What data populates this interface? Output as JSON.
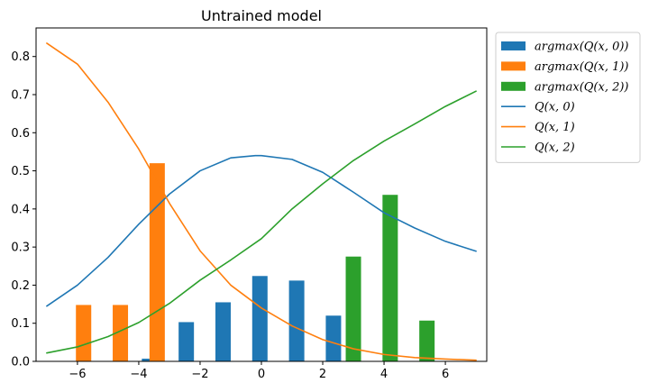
{
  "chart_data": {
    "type": "bar",
    "title": "Untrained model",
    "xlabel": "",
    "ylabel": "",
    "xlim": [
      -7.35,
      7.35
    ],
    "ylim": [
      0,
      0.875
    ],
    "xticks": [
      -6,
      -4,
      -2,
      0,
      2,
      4,
      6
    ],
    "xtick_labels": [
      "−6",
      "−4",
      "−2",
      "0",
      "2",
      "4",
      "6"
    ],
    "yticks": [
      0.0,
      0.1,
      0.2,
      0.3,
      0.4,
      0.5,
      0.6,
      0.7,
      0.8
    ],
    "ytick_labels": [
      "0.0",
      "0.1",
      "0.2",
      "0.3",
      "0.4",
      "0.5",
      "0.6",
      "0.7",
      "0.8"
    ],
    "grid": false,
    "legend_position": "outside-top-right",
    "bar_width": 0.5,
    "bar_series": [
      {
        "name": "argmax(Q(x, 0))",
        "color": "#1f77b4",
        "points": [
          {
            "x": -3.65,
            "y": 0.007
          },
          {
            "x": -2.45,
            "y": 0.103
          },
          {
            "x": -1.25,
            "y": 0.155
          },
          {
            "x": -0.05,
            "y": 0.224
          },
          {
            "x": 1.15,
            "y": 0.212
          },
          {
            "x": 2.35,
            "y": 0.12
          }
        ]
      },
      {
        "name": "argmax(Q(x, 1))",
        "color": "#ff7f0e",
        "points": [
          {
            "x": -5.8,
            "y": 0.148
          },
          {
            "x": -4.6,
            "y": 0.148
          },
          {
            "x": -3.4,
            "y": 0.52
          }
        ]
      },
      {
        "name": "argmax(Q(x, 2))",
        "color": "#2ca02c",
        "points": [
          {
            "x": 3.0,
            "y": 0.275
          },
          {
            "x": 4.2,
            "y": 0.437
          },
          {
            "x": 5.4,
            "y": 0.107
          }
        ]
      }
    ],
    "line_series": [
      {
        "name": "Q(x, 0)",
        "color": "#1f77b4",
        "points": [
          [
            -7,
            0.145
          ],
          [
            -6,
            0.2
          ],
          [
            -5,
            0.273
          ],
          [
            -4,
            0.36
          ],
          [
            -3,
            0.439
          ],
          [
            -2,
            0.5
          ],
          [
            -1,
            0.534
          ],
          [
            -0.2,
            0.54
          ],
          [
            0,
            0.54
          ],
          [
            1,
            0.53
          ],
          [
            2,
            0.496
          ],
          [
            3,
            0.444
          ],
          [
            4,
            0.39
          ],
          [
            5,
            0.35
          ],
          [
            6,
            0.315
          ],
          [
            7,
            0.289
          ]
        ]
      },
      {
        "name": "Q(x, 1)",
        "color": "#ff7f0e",
        "points": [
          [
            -7,
            0.835
          ],
          [
            -6,
            0.78
          ],
          [
            -5,
            0.68
          ],
          [
            -4,
            0.557
          ],
          [
            -3,
            0.415
          ],
          [
            -2,
            0.29
          ],
          [
            -1,
            0.2
          ],
          [
            0,
            0.14
          ],
          [
            1,
            0.093
          ],
          [
            2,
            0.057
          ],
          [
            3,
            0.033
          ],
          [
            4,
            0.018
          ],
          [
            5,
            0.01
          ],
          [
            6,
            0.006
          ],
          [
            7,
            0.003
          ]
        ]
      },
      {
        "name": "Q(x, 2)",
        "color": "#2ca02c",
        "points": [
          [
            -7,
            0.022
          ],
          [
            -6,
            0.038
          ],
          [
            -5,
            0.065
          ],
          [
            -4,
            0.102
          ],
          [
            -3,
            0.152
          ],
          [
            -2,
            0.213
          ],
          [
            -1,
            0.266
          ],
          [
            0,
            0.322
          ],
          [
            1,
            0.4
          ],
          [
            2,
            0.466
          ],
          [
            3,
            0.527
          ],
          [
            4,
            0.578
          ],
          [
            5,
            0.623
          ],
          [
            6,
            0.669
          ],
          [
            7,
            0.709
          ]
        ]
      }
    ]
  }
}
